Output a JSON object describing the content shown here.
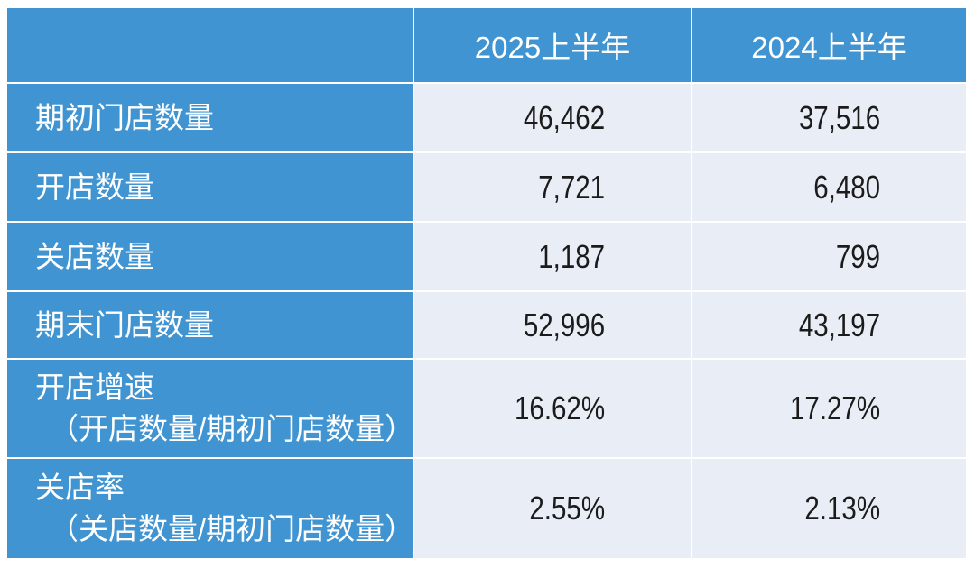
{
  "table": {
    "header": {
      "blank": "",
      "col_2025": "2025上半年",
      "col_2024": "2024上半年"
    },
    "rows": [
      {
        "label": "期初门店数量",
        "v2025": "46,462",
        "v2024": "37,516"
      },
      {
        "label": "开店数量",
        "v2025": "7,721",
        "v2024": "6,480"
      },
      {
        "label": "关店数量",
        "v2025": "1,187",
        "v2024": "799"
      },
      {
        "label": "期末门店数量",
        "v2025": "52,996",
        "v2024": "43,197"
      },
      {
        "label": "开店增速",
        "label_sub": "（开店数量/期初门店数量）",
        "v2025": "16.62%",
        "v2024": "17.27%"
      },
      {
        "label": "关店率",
        "label_sub": "（关店数量/期初门店数量）",
        "v2025": "2.55%",
        "v2024": "2.13%"
      }
    ],
    "colors": {
      "header_bg": "#4094D1",
      "cell_bg": "#E9EEF6",
      "header_text": "#FFFFFF",
      "value_text": "#1B1B1B",
      "page_bg": "#FFFFFF"
    }
  },
  "chart_data": {
    "type": "table",
    "title": "",
    "columns": [
      "",
      "2025上半年",
      "2024上半年"
    ],
    "rows": [
      [
        "期初门店数量",
        "46,462",
        "37,516"
      ],
      [
        "开店数量",
        "7,721",
        "6,480"
      ],
      [
        "关店数量",
        "1,187",
        "799"
      ],
      [
        "期末门店数量",
        "52,996",
        "43,197"
      ],
      [
        "开店增速（开店数量/期初门店数量）",
        "16.62%",
        "17.27%"
      ],
      [
        "关店率（关店数量/期初门店数量）",
        "2.55%",
        "2.13%"
      ]
    ]
  }
}
